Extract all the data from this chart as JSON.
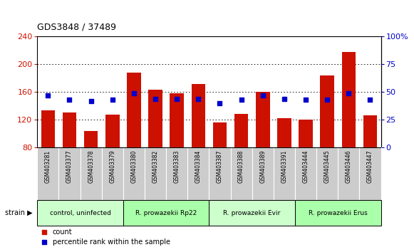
{
  "title": "GDS3848 / 37489",
  "samples": [
    "GSM403281",
    "GSM403377",
    "GSM403378",
    "GSM403379",
    "GSM403380",
    "GSM403382",
    "GSM403383",
    "GSM403384",
    "GSM403387",
    "GSM403388",
    "GSM403389",
    "GSM403391",
    "GSM403444",
    "GSM403445",
    "GSM403446",
    "GSM403447"
  ],
  "counts": [
    133,
    130,
    104,
    127,
    188,
    163,
    158,
    172,
    116,
    128,
    160,
    122,
    120,
    184,
    218,
    126
  ],
  "percentiles": [
    47,
    43,
    42,
    43,
    49,
    44,
    44,
    44,
    40,
    43,
    47,
    44,
    43,
    43,
    49,
    43
  ],
  "groups": [
    {
      "label": "control, uninfected",
      "start": 0,
      "end": 4,
      "color": "#ccffcc"
    },
    {
      "label": "R. prowazekii Rp22",
      "start": 4,
      "end": 8,
      "color": "#aaffaa"
    },
    {
      "label": "R. prowazekii Evir",
      "start": 8,
      "end": 12,
      "color": "#ccffcc"
    },
    {
      "label": "R. prowazekii Erus",
      "start": 12,
      "end": 16,
      "color": "#aaffaa"
    }
  ],
  "ylim_left": [
    80,
    240
  ],
  "ylim_right": [
    0,
    100
  ],
  "bar_color": "#cc1100",
  "dot_color": "#0000cc",
  "tick_left": [
    80,
    120,
    160,
    200,
    240
  ],
  "tick_right": [
    0,
    25,
    50,
    75,
    100
  ],
  "left_color": "#cc1100",
  "right_color": "#0000cc",
  "right_tick_labels": [
    "0",
    "25",
    "50",
    "75",
    "100%"
  ]
}
